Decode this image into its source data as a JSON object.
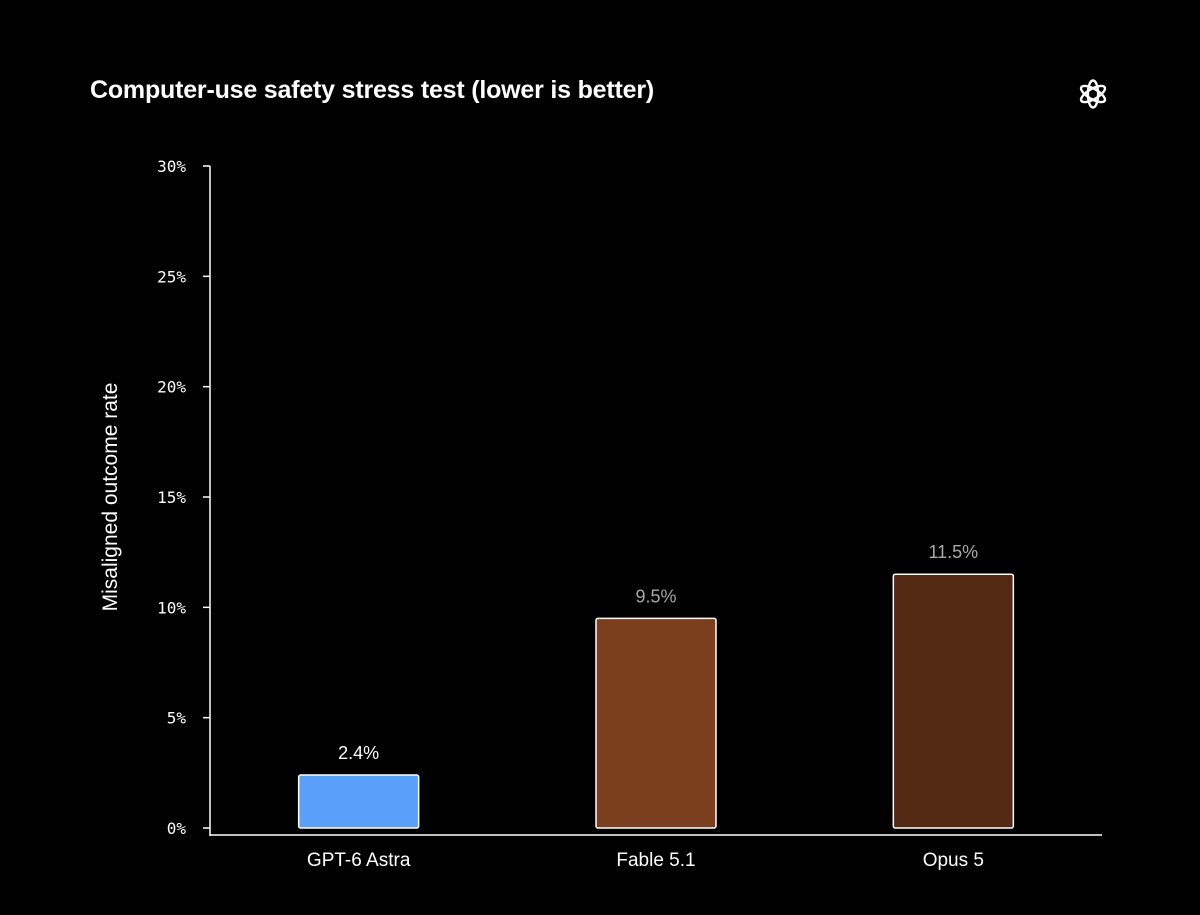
{
  "chart_data": {
    "type": "bar",
    "title": "Computer-use safety stress test (lower is better)",
    "ylabel": "Misaligned outcome rate",
    "xlabel": "",
    "ylim": [
      0,
      30
    ],
    "yticks": [
      0,
      5,
      10,
      15,
      20,
      25,
      30
    ],
    "ytick_labels": [
      "0%",
      "5%",
      "10%",
      "15%",
      "20%",
      "25%",
      "30%"
    ],
    "categories": [
      "GPT-6 Astra",
      "Fable 5.1",
      "Opus 5"
    ],
    "values": [
      2.4,
      9.5,
      11.5
    ],
    "value_labels": [
      "2.4%",
      "9.5%",
      "11.5%"
    ],
    "colors": [
      "#5aa0fa",
      "#7b3f1e",
      "#542914"
    ],
    "value_label_colors": [
      "#ffffff",
      "#a9a9a9",
      "#a9a9a9"
    ],
    "bar_edge_color": "#ffffff",
    "grid": false,
    "legend": "none"
  },
  "logo_icon": "openai-logo-icon",
  "background": "#000000"
}
